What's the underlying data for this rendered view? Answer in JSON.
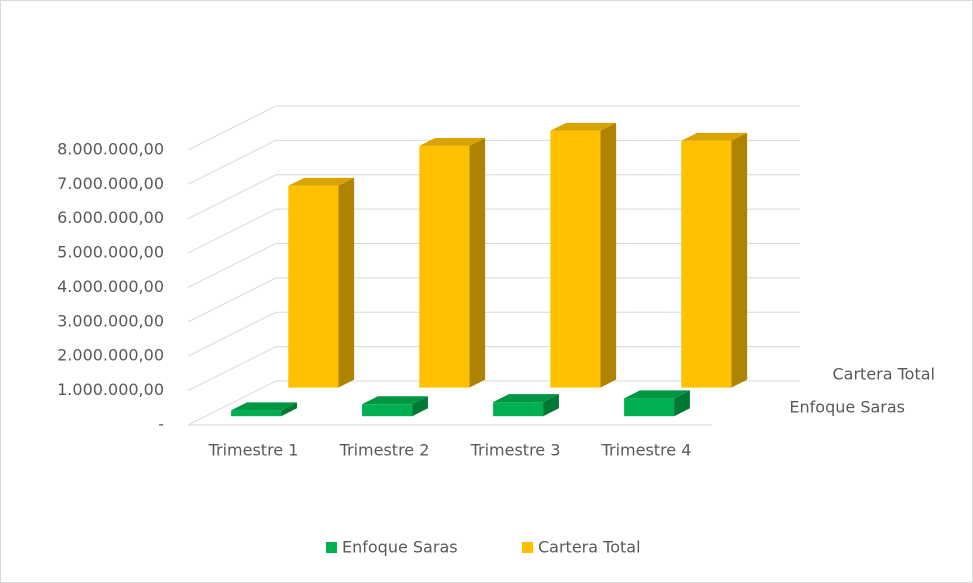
{
  "chart_data": {
    "type": "bar3d",
    "categories": [
      "Trimestre 1",
      "Trimestre 2",
      "Trimestre 3",
      "Trimestre 4"
    ],
    "series": [
      {
        "name": "Enfoque Saras",
        "color": "#00b050",
        "values": [
          170000,
          350000,
          410000,
          520000
        ]
      },
      {
        "name": "Cartera Total",
        "color": "#ffc000",
        "values": [
          5870000,
          7030000,
          7470000,
          7180000
        ]
      }
    ],
    "ylim": [
      0,
      9000000
    ],
    "yticks": [
      {
        "value": 0,
        "label": "-"
      },
      {
        "value": 1000000,
        "label": "1.000.000,00"
      },
      {
        "value": 2000000,
        "label": "2.000.000,00"
      },
      {
        "value": 3000000,
        "label": "3.000.000,00"
      },
      {
        "value": 4000000,
        "label": "4.000.000,00"
      },
      {
        "value": 5000000,
        "label": "5.000.000,00"
      },
      {
        "value": 6000000,
        "label": "6.000.000,00"
      },
      {
        "value": 7000000,
        "label": "7.000.000,00"
      },
      {
        "value": 8000000,
        "label": "8.000.000,00"
      }
    ],
    "grid": true,
    "legend": "bottom"
  }
}
